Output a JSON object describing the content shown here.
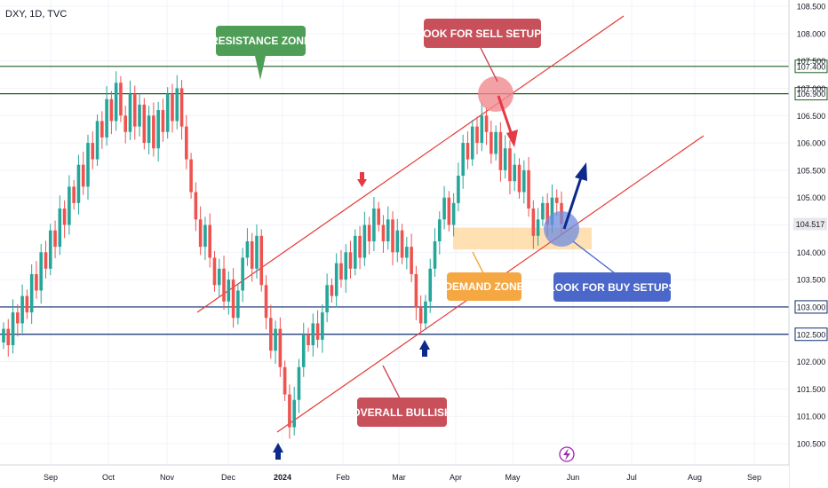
{
  "header": {
    "title": "DXY, 1D, TVC"
  },
  "annotations": {
    "resistance_zone": "RESISTANCE ZONE",
    "look_for_sell": "LOOK FOR SELL SETUPS",
    "demand_zone": "DEMAND ZONE",
    "look_for_buy": "LOOK FOR BUY SETUPS",
    "overall_bullish": "OVERALL BULLISH"
  },
  "colors": {
    "up": "#26a69a",
    "down": "#ef5350",
    "resistance_line": "#1b5e20",
    "support_line": "#0d2a6b",
    "channel": "#e53935",
    "resistance_label": "#4f9e57",
    "sell_label": "#c8505a",
    "demand_fill": "#ffd699",
    "demand_label": "#f5a742",
    "buy_label": "#4a67c9",
    "bullish_label": "#c8505a",
    "arrow_blue": "#0d2a8a",
    "arrow_red": "#e53946"
  },
  "chart_data": {
    "type": "candlestick",
    "title": "DXY, 1D, TVC",
    "ylim": [
      100.2,
      108.6
    ],
    "y_ticks": [
      "100.500",
      "101.000",
      "101.500",
      "102.000",
      "102.500",
      "103.000",
      "103.500",
      "104.000",
      "104.500",
      "105.000",
      "105.500",
      "106.000",
      "106.500",
      "106.900",
      "107.000",
      "107.400",
      "107.500",
      "108.000",
      "108.500"
    ],
    "x_ticks": [
      "Sep",
      "Oct",
      "Nov",
      "Dec",
      "2024",
      "Feb",
      "Mar",
      "Apr",
      "May",
      "Jun",
      "Jul",
      "Aug",
      "Sep"
    ],
    "horizontal_levels": [
      {
        "label": "107.400",
        "value": 107.4,
        "kind": "resistance"
      },
      {
        "label": "106.900",
        "value": 106.9,
        "kind": "resistance"
      },
      {
        "label": "103.000",
        "value": 103.0,
        "kind": "support"
      },
      {
        "label": "102.500",
        "value": 102.5,
        "kind": "support"
      }
    ],
    "last_price": {
      "label": "104.517",
      "value": 104.517
    },
    "demand_zone": {
      "from": 104.05,
      "to": 104.45
    },
    "series": [
      {
        "values": [
          102.6,
          102.3,
          102.9,
          102.7,
          103.2,
          102.9,
          103.6,
          103.3,
          104.0,
          103.7,
          104.4,
          104.1,
          104.8,
          104.5,
          105.2,
          104.9,
          105.6,
          105.2,
          106.0,
          105.7,
          106.4,
          106.1,
          106.8,
          106.4,
          107.1,
          106.5,
          106.2,
          106.9,
          106.3,
          106.7,
          106.0,
          106.5,
          105.9,
          106.6,
          106.2,
          106.9,
          106.4,
          107.0,
          106.3,
          105.7,
          105.1,
          104.6,
          104.1,
          104.5,
          103.9,
          103.4,
          103.7,
          103.1,
          103.5,
          102.8,
          103.3,
          103.9,
          104.2,
          103.7,
          104.3,
          103.4,
          102.8,
          102.2,
          102.6,
          101.9,
          101.4,
          100.8,
          101.3,
          101.9,
          102.5,
          102.3,
          102.7,
          102.4,
          102.9,
          103.4,
          103.2,
          103.8,
          103.5,
          104.0,
          103.7,
          104.3,
          103.9,
          104.5,
          104.2,
          104.8,
          104.5,
          104.2,
          104.6,
          104.0,
          104.4,
          103.9,
          104.1,
          103.6,
          103.0,
          102.7,
          103.1,
          103.7,
          104.2,
          104.6,
          105.0,
          104.5,
          104.9,
          105.4,
          106.0,
          105.7,
          106.3,
          106.0,
          106.5,
          106.2,
          105.8,
          106.2,
          105.5,
          105.9,
          105.3,
          105.6,
          105.1,
          105.5,
          104.8,
          104.3,
          104.6,
          104.9,
          104.5,
          105.0,
          104.9,
          104.517
        ]
      }
    ]
  }
}
